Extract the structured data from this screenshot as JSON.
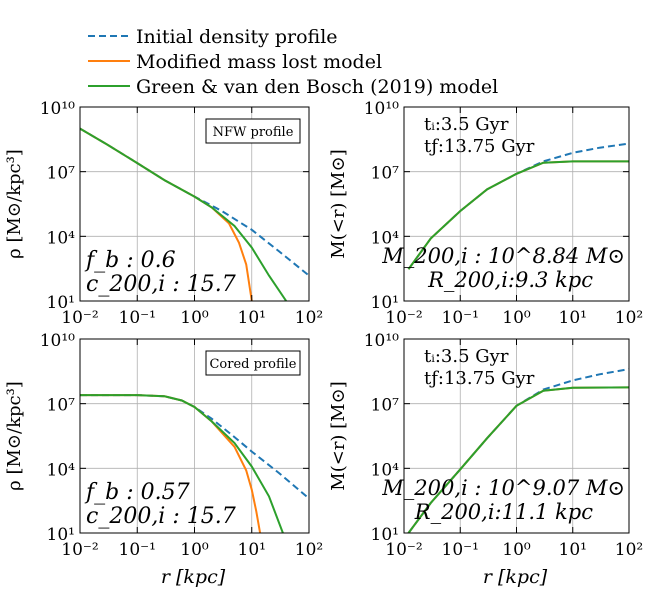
{
  "legend": {
    "position": "top-left",
    "entries": [
      {
        "label": "Initial density profile",
        "color": "#1f77b4",
        "style": "dashed"
      },
      {
        "label": "Modified mass lost model",
        "color": "#ff7f0e",
        "style": "solid"
      },
      {
        "label": "Green & van den Bosch (2019) model",
        "color": "#2ca02c",
        "style": "solid"
      }
    ]
  },
  "x_axis": {
    "label": "r [kpc]",
    "scale": "log",
    "range": [
      0.01,
      100
    ],
    "ticks": [
      "10⁻²",
      "10⁻¹",
      "10⁰",
      "10¹",
      "10²"
    ]
  },
  "chart_data": [
    {
      "type": "line",
      "panel": "top-left",
      "ylabel": "ρ [M⊙/kpc³]",
      "yscale": "log",
      "ylim": [
        10,
        10000000000
      ],
      "yticks": [
        "10¹",
        "10⁴",
        "10⁷",
        "10¹⁰"
      ],
      "profile_box": "NFW profile",
      "annotations": [
        "f_b : 0.6",
        "c_200,i : 15.7"
      ],
      "series": [
        {
          "name": "Initial density profile",
          "x": [
            0.01,
            0.03,
            0.1,
            0.3,
            1,
            3,
            10,
            30,
            100
          ],
          "y": [
            1000000000.0,
            180000000.0,
            25000000.0,
            4000000.0,
            700000.0,
            150000.0,
            20000.0,
            2000,
            150
          ]
        },
        {
          "name": "Modified mass lost model",
          "x": [
            0.01,
            0.03,
            0.1,
            0.3,
            1,
            2,
            4,
            6,
            8,
            10
          ],
          "y": [
            1000000000.0,
            180000000.0,
            25000000.0,
            4000000.0,
            700000.0,
            220000.0,
            40000.0,
            5000,
            500,
            10
          ]
        },
        {
          "name": "Green & van den Bosch (2019) model",
          "x": [
            0.01,
            0.03,
            0.1,
            0.3,
            1,
            2,
            5,
            10,
            20,
            40
          ],
          "y": [
            1000000000.0,
            180000000.0,
            25000000.0,
            4000000.0,
            700000.0,
            220000.0,
            30000.0,
            3000,
            150,
            10
          ]
        }
      ]
    },
    {
      "type": "line",
      "panel": "top-right",
      "ylabel": "M(<r) [M⊙]",
      "yscale": "log",
      "ylim": [
        10,
        10000000000
      ],
      "yticks": [
        "10¹",
        "10⁴",
        "10⁷",
        "10¹⁰"
      ],
      "times": [
        "tᵢ:3.5 Gyr",
        "tƒ:13.75 Gyr"
      ],
      "annotations": [
        "M_200,i : 10^8.84 M⊙",
        "R_200,i:9.3 kpc"
      ],
      "series": [
        {
          "name": "Initial density profile",
          "x": [
            0.012,
            0.03,
            0.1,
            0.3,
            1,
            3,
            10,
            30,
            100
          ],
          "y": [
            300,
            8000,
            150000,
            1500000,
            8000000,
            30000000,
            75000000,
            130000000,
            200000000
          ]
        },
        {
          "name": "Modified mass lost model",
          "x": [
            0.012,
            0.03,
            0.1,
            0.3,
            1,
            3,
            10,
            100
          ],
          "y": [
            300,
            8000,
            150000,
            1500000,
            8000000,
            26000000,
            30000000,
            30000000
          ]
        },
        {
          "name": "Green & van den Bosch (2019) model",
          "x": [
            0.012,
            0.03,
            0.1,
            0.3,
            1,
            3,
            10,
            100
          ],
          "y": [
            300,
            8000,
            150000,
            1500000,
            8000000,
            26000000,
            30000000,
            30000000
          ]
        }
      ]
    },
    {
      "type": "line",
      "panel": "bottom-left",
      "ylabel": "ρ [M⊙/kpc³]",
      "yscale": "log",
      "ylim": [
        10,
        10000000000
      ],
      "yticks": [
        "10¹",
        "10⁴",
        "10⁷",
        "10¹⁰"
      ],
      "profile_box": "Cored profile",
      "annotations": [
        "f_b : 0.57",
        "c_200,i : 15.7"
      ],
      "series": [
        {
          "name": "Initial density profile",
          "x": [
            0.01,
            0.03,
            0.1,
            0.3,
            0.6,
            1,
            2,
            5,
            10,
            30,
            100
          ],
          "y": [
            25000000.0,
            25000000.0,
            25000000.0,
            22000000.0,
            14000000.0,
            7000000.0,
            2000000.0,
            280000.0,
            60000.0,
            6000,
            400
          ]
        },
        {
          "name": "Modified mass lost model",
          "x": [
            0.01,
            0.03,
            0.1,
            0.3,
            0.6,
            1,
            2,
            5,
            8,
            10,
            12,
            14
          ],
          "y": [
            25000000.0,
            25000000.0,
            25000000.0,
            22000000.0,
            14000000.0,
            7000000.0,
            1500000.0,
            100000.0,
            8000,
            1000,
            100,
            10
          ]
        },
        {
          "name": "Green & van den Bosch (2019) model",
          "x": [
            0.01,
            0.03,
            0.1,
            0.3,
            0.6,
            1,
            2,
            5,
            10,
            20,
            35
          ],
          "y": [
            25000000.0,
            25000000.0,
            25000000.0,
            22000000.0,
            14000000.0,
            7000000.0,
            1500000.0,
            150000.0,
            12000.0,
            500,
            10
          ]
        }
      ]
    },
    {
      "type": "line",
      "panel": "bottom-right",
      "ylabel": "M(<r) [M⊙]",
      "yscale": "log",
      "ylim": [
        10,
        10000000000
      ],
      "yticks": [
        "10¹",
        "10⁴",
        "10⁷",
        "10¹⁰"
      ],
      "times": [
        "tᵢ:3.5 Gyr",
        "tƒ:13.75 Gyr"
      ],
      "annotations": [
        "M_200,i : 10^9.07 M⊙",
        "R_200,i:11.1 kpc"
      ],
      "series": [
        {
          "name": "Initial density profile",
          "x": [
            0.012,
            0.03,
            0.1,
            0.3,
            1,
            3,
            10,
            30,
            100
          ],
          "y": [
            10,
            250,
            9000,
            250000,
            8000000,
            45000000,
            120000000,
            230000000,
            400000000
          ]
        },
        {
          "name": "Modified mass lost model",
          "x": [
            0.012,
            0.03,
            0.1,
            0.3,
            1,
            3,
            10,
            100
          ],
          "y": [
            10,
            250,
            9000,
            250000,
            8000000,
            40000000,
            55000000,
            57000000
          ]
        },
        {
          "name": "Green & van den Bosch (2019) model",
          "x": [
            0.012,
            0.03,
            0.1,
            0.3,
            1,
            3,
            10,
            100
          ],
          "y": [
            10,
            250,
            9000,
            250000,
            8000000,
            40000000,
            55000000,
            57000000
          ]
        }
      ]
    }
  ]
}
